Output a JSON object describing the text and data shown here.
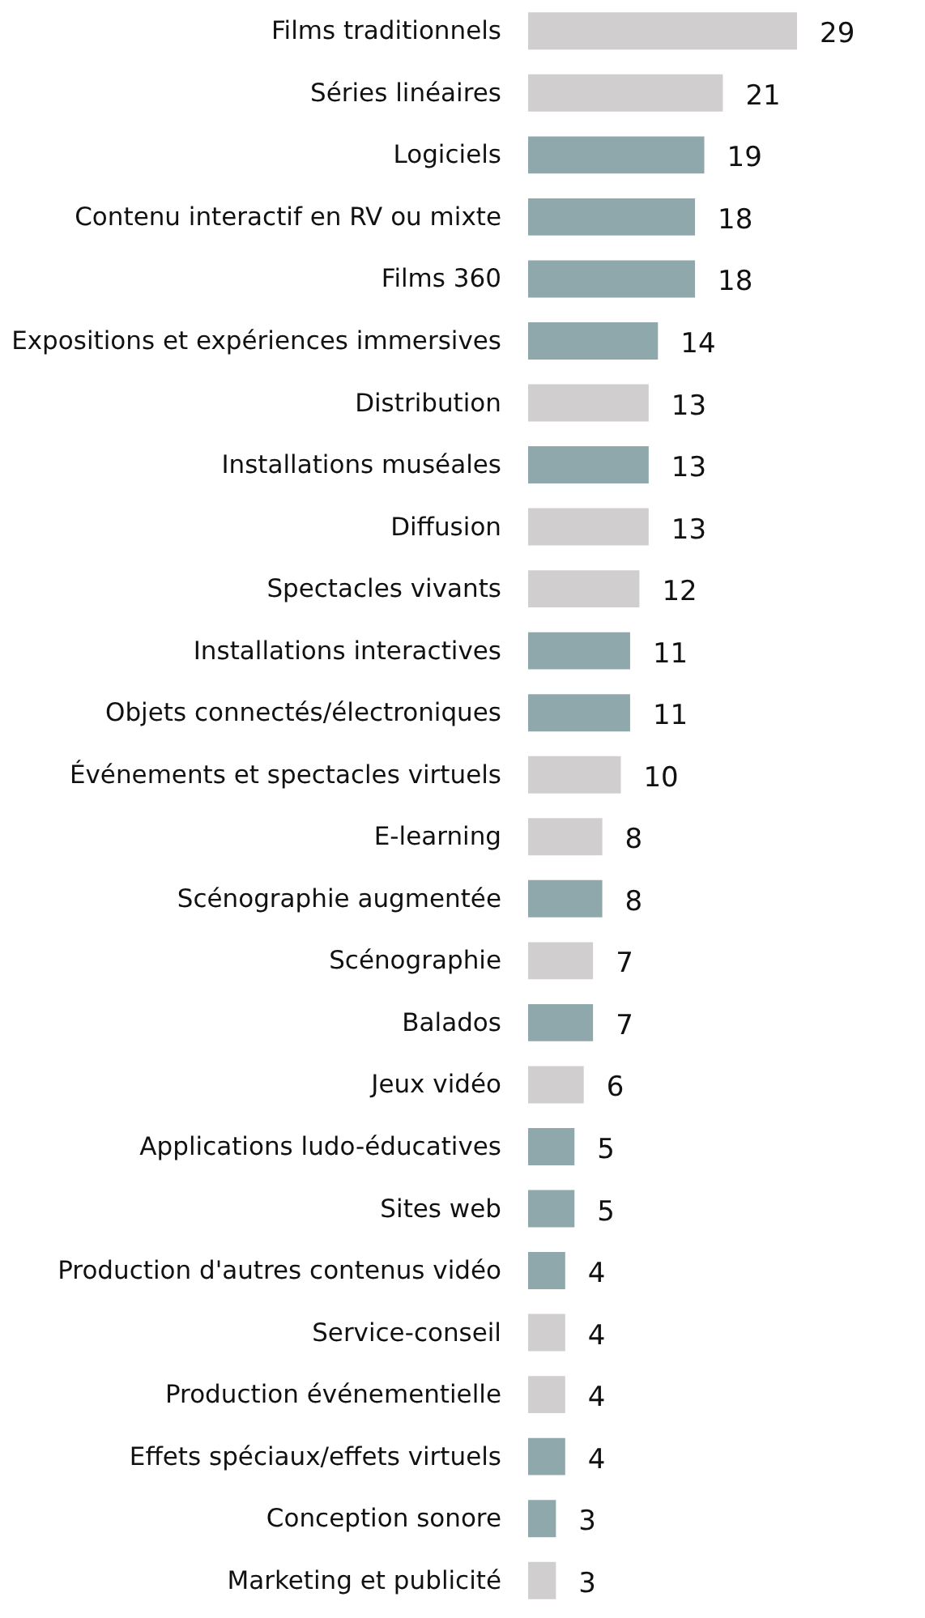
{
  "chart_data": {
    "type": "bar",
    "orientation": "horizontal",
    "data_labels": true,
    "categories": [
      "Films traditionnels",
      "Séries linéaires",
      "Logiciels",
      "Contenu interactif en RV ou mixte",
      "Films 360",
      "Expositions et expériences immersives",
      "Distribution",
      "Installations muséales",
      "Diffusion",
      "Spectacles vivants",
      "Installations interactives",
      "Objets connectés/électroniques",
      "Événements et spectacles virtuels",
      "E-learning",
      "Scénographie augmentée",
      "Scénographie",
      "Balados",
      "Jeux vidéo",
      "Applications ludo-éducatives",
      "Sites web",
      "Production d'autres contenus vidéo",
      "Service-conseil",
      "Production événementielle",
      "Effets spéciaux/effets virtuels",
      "Conception sonore",
      "Marketing et publicité"
    ],
    "values": [
      29,
      21,
      19,
      18,
      18,
      14,
      13,
      13,
      13,
      12,
      11,
      11,
      10,
      8,
      8,
      7,
      7,
      6,
      5,
      5,
      4,
      4,
      4,
      4,
      3,
      3
    ],
    "colors": [
      "#d0cecf",
      "#d0cecf",
      "#8fa8ac",
      "#8fa8ac",
      "#8fa8ac",
      "#8fa8ac",
      "#d0cecf",
      "#8fa8ac",
      "#d0cecf",
      "#d0cecf",
      "#8fa8ac",
      "#8fa8ac",
      "#d0cecf",
      "#d0cecf",
      "#8fa8ac",
      "#d0cecf",
      "#8fa8ac",
      "#d0cecf",
      "#8fa8ac",
      "#8fa8ac",
      "#8fa8ac",
      "#d0cecf",
      "#d0cecf",
      "#8fa8ac",
      "#8fa8ac",
      "#d0cecf"
    ]
  }
}
